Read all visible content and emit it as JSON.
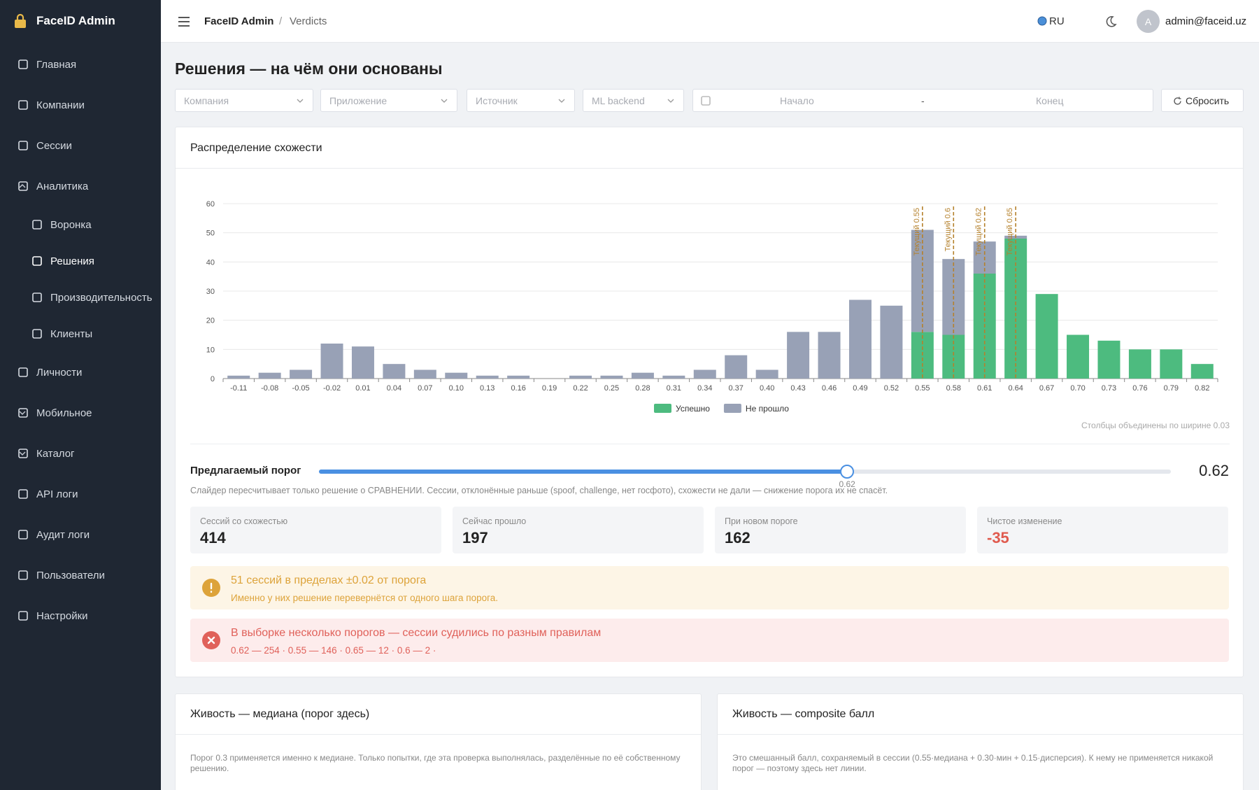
{
  "sidebar": {
    "brand": "FaceID Admin",
    "menu": [
      {
        "label": "Главная"
      },
      {
        "label": "Компании"
      },
      {
        "label": "Сессии"
      },
      {
        "label": "Аналитика",
        "expanded": true,
        "children": [
          "Воронка",
          "Решения",
          "Производительность",
          "Клиенты"
        ],
        "active_child": 1
      },
      {
        "label": "Личности"
      },
      {
        "label": "Мобильное",
        "expanded": false
      },
      {
        "label": "Каталог",
        "expanded": false
      },
      {
        "label": "API логи"
      },
      {
        "label": "Аудит логи"
      },
      {
        "label": "Пользователи"
      },
      {
        "label": "Настройки"
      }
    ]
  },
  "header": {
    "breadcrumb": [
      "FaceID Admin",
      "Verdicts"
    ],
    "language": "RU",
    "avatar": "A",
    "user": "admin@faceid.uz"
  },
  "page": {
    "title": "Решения — на чём они основаны",
    "filters": [
      "Компания",
      "Приложение",
      "Источник",
      "ML backend"
    ],
    "date_range": {
      "start": "Начало",
      "separator": "-",
      "end": "Конец"
    },
    "reset": "Сбросить"
  },
  "chart_data": {
    "type": "bar",
    "stacked": true,
    "title": "Распределение схожести",
    "categories": [
      "-0.11",
      "-0.08",
      "-0.05",
      "-0.02",
      "0.01",
      "0.04",
      "0.07",
      "0.10",
      "0.13",
      "0.16",
      "0.19",
      "0.22",
      "0.25",
      "0.28",
      "0.31",
      "0.34",
      "0.37",
      "0.40",
      "0.43",
      "0.46",
      "0.49",
      "0.52",
      "0.55",
      "0.58",
      "0.61",
      "0.64",
      "0.67",
      "0.70",
      "0.73",
      "0.76",
      "0.79",
      "0.82"
    ],
    "series": [
      {
        "name": "Успешно",
        "color": "#4dbb7f",
        "values": [
          0,
          0,
          0,
          0,
          0,
          0,
          0,
          0,
          0,
          0,
          0,
          0,
          0,
          0,
          0,
          0,
          0,
          0,
          0,
          0,
          0,
          0,
          16,
          15,
          36,
          48,
          29,
          15,
          13,
          10,
          10,
          5
        ]
      },
      {
        "name": "Не прошло",
        "color": "#98a1b6",
        "values": [
          1,
          2,
          3,
          12,
          11,
          5,
          3,
          2,
          1,
          1,
          0,
          1,
          1,
          2,
          1,
          3,
          8,
          3,
          16,
          16,
          27,
          25,
          35,
          26,
          11,
          1,
          0,
          0,
          0,
          0,
          0,
          0
        ]
      }
    ],
    "threshold_lines": [
      {
        "value": 0.55,
        "label": "Текущий 0.55"
      },
      {
        "value": 0.6,
        "label": "Текущий 0.6"
      },
      {
        "value": 0.62,
        "label": "Текущий 0.62"
      },
      {
        "value": 0.65,
        "label": "Текущий 0.65"
      }
    ],
    "threshold_color": "#b5812c",
    "ylim": [
      0,
      60
    ],
    "yticks": [
      0,
      10,
      20,
      30,
      40,
      50,
      60
    ],
    "grid": true,
    "legend": "bottom",
    "note": "Столбцы объединены по ширине 0.03"
  },
  "threshold": {
    "label": "Предлагаемый порог",
    "value": 0.62,
    "min": 0,
    "max": 1,
    "hint": "Слайдер пересчитывает только решение о СРАВНЕНИИ. Сессии, отклонённые раньше (spoof, challenge, нет госфото), схожести не дали — снижение порога их не спасёт."
  },
  "stats": [
    {
      "label": "Сессий со схожестью",
      "value": 414
    },
    {
      "label": "Сейчас прошло",
      "value": 197
    },
    {
      "label": "При новом пороге",
      "value": 162
    },
    {
      "label": "Чистое изменение",
      "value": -35
    }
  ],
  "alerts": {
    "warning": {
      "title": "51 сессий в пределах ±0.02 от порога",
      "text": "Именно у них решение перевернётся от одного шага порога."
    },
    "error": {
      "title": "В выборке несколько порогов — сессии судились по разным правилам",
      "text": "0.62 — 254 · 0.55 — 146 · 0.65 — 12 · 0.6 — 2 ·"
    }
  },
  "cards": [
    {
      "title": "Живость — медиана (порог здесь)",
      "text": "Порог 0.3 применяется именно к медиане. Только попытки, где эта проверка выполнялась, разделённые по её собственному решению."
    },
    {
      "title": "Живость — composite балл",
      "text": "Это смешанный балл, сохраняемый в сессии (0.55·медиана + 0.30·мин + 0.15·дисперсия). К нему не применяется никакой порог — поэтому здесь нет линии."
    }
  ]
}
